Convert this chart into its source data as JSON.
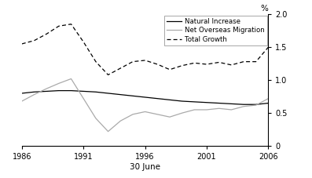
{
  "years": [
    1986,
    1987,
    1988,
    1989,
    1990,
    1991,
    1992,
    1993,
    1994,
    1995,
    1996,
    1997,
    1998,
    1999,
    2000,
    2001,
    2002,
    2003,
    2004,
    2005,
    2006
  ],
  "natural_increase": [
    0.8,
    0.82,
    0.83,
    0.84,
    0.84,
    0.83,
    0.82,
    0.8,
    0.78,
    0.76,
    0.74,
    0.72,
    0.7,
    0.68,
    0.67,
    0.66,
    0.65,
    0.64,
    0.63,
    0.63,
    0.65
  ],
  "net_overseas_migration": [
    0.68,
    0.78,
    0.87,
    0.95,
    1.02,
    0.72,
    0.42,
    0.22,
    0.38,
    0.48,
    0.52,
    0.48,
    0.44,
    0.5,
    0.55,
    0.55,
    0.57,
    0.55,
    0.6,
    0.62,
    0.72
  ],
  "total_growth": [
    1.55,
    1.6,
    1.7,
    1.82,
    1.85,
    1.58,
    1.28,
    1.08,
    1.18,
    1.28,
    1.3,
    1.24,
    1.16,
    1.22,
    1.26,
    1.24,
    1.27,
    1.23,
    1.28,
    1.28,
    1.5
  ],
  "natural_increase_color": "#000000",
  "net_overseas_migration_color": "#aaaaaa",
  "total_growth_color": "#000000",
  "xlabel": "30 June",
  "ylabel": "%",
  "ylim": [
    0,
    2.0
  ],
  "yticks": [
    0,
    0.5,
    1.0,
    1.5,
    2.0
  ],
  "xticks": [
    1986,
    1991,
    1996,
    2001,
    2006
  ],
  "xlim": [
    1986,
    2006
  ],
  "legend_labels": [
    "Natural Increase",
    "Net Overseas Migration",
    "Total Growth"
  ],
  "background_color": "#ffffff",
  "linewidth_solid": 0.9,
  "linewidth_dashed": 0.9
}
